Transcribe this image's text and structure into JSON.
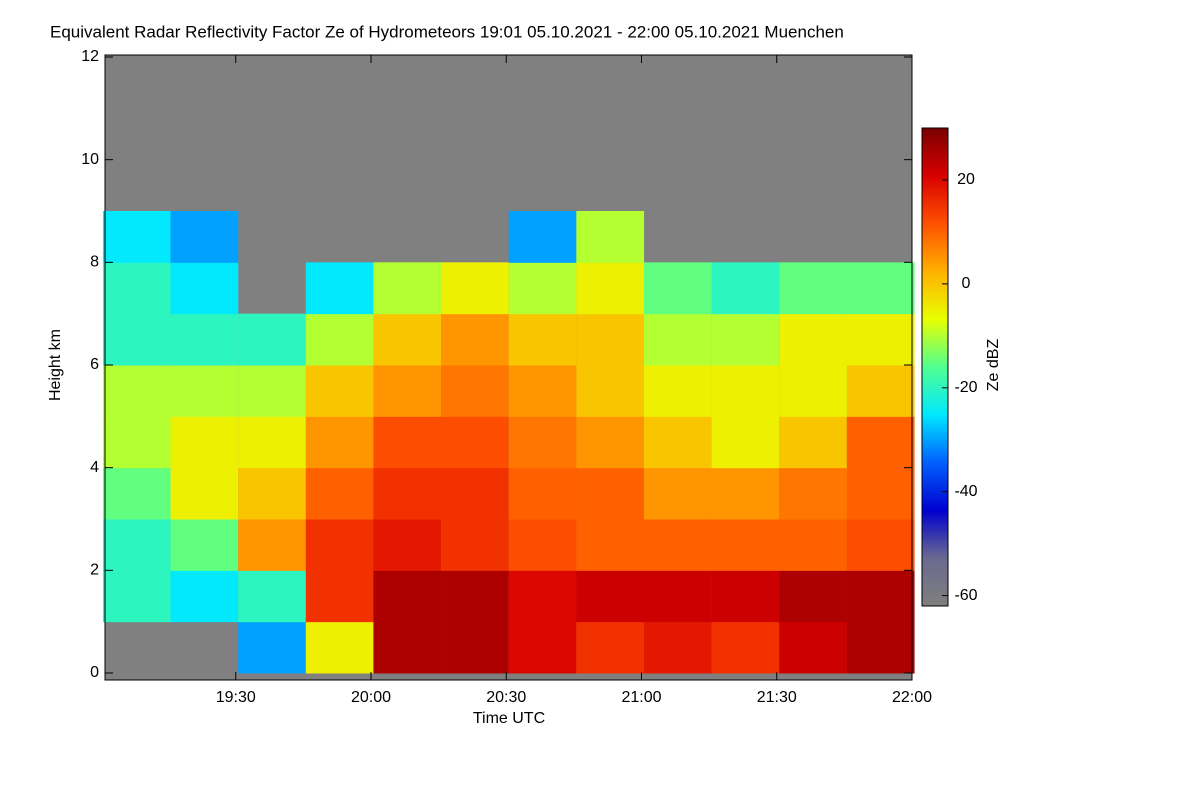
{
  "chart_data": {
    "type": "heatmap",
    "title": "Equivalent Radar Reflectivity Factor Ze of Hydrometeors   19:01 05.10.2021 - 22:00 05.10.2021 Muenchen",
    "xlabel": "Time UTC",
    "ylabel": "Height km",
    "colorbar_label": "Ze dBZ",
    "x": [
      1148,
      1163,
      1178,
      1193,
      1208,
      1223,
      1238,
      1253,
      1268,
      1283,
      1298,
      1313
    ],
    "y": [
      0.5,
      1.5,
      2.5,
      3.5,
      4.5,
      5.5,
      6.5,
      7.5,
      8.5,
      9.5,
      10.5,
      11.5
    ],
    "z": [
      [
        null,
        null,
        -30,
        -5,
        25,
        25,
        20,
        15,
        18,
        15,
        22,
        25
      ],
      [
        -20,
        -25,
        -20,
        15,
        25,
        25,
        20,
        22,
        22,
        22,
        25,
        25
      ],
      [
        -20,
        -15,
        5,
        15,
        18,
        15,
        12,
        10,
        10,
        10,
        10,
        12
      ],
      [
        -15,
        -5,
        0,
        10,
        15,
        15,
        10,
        10,
        5,
        5,
        8,
        10
      ],
      [
        -10,
        -5,
        -5,
        5,
        12,
        12,
        8,
        5,
        0,
        -5,
        0,
        10
      ],
      [
        -10,
        -10,
        -10,
        0,
        5,
        8,
        5,
        0,
        -5,
        -5,
        -5,
        0
      ],
      [
        -20,
        -20,
        -20,
        -10,
        0,
        5,
        0,
        0,
        -10,
        -10,
        -5,
        -5
      ],
      [
        -20,
        -25,
        null,
        -25,
        -10,
        -5,
        -10,
        -5,
        -15,
        -20,
        -15,
        -15
      ],
      [
        -25,
        -30,
        null,
        null,
        null,
        null,
        -30,
        -10,
        null,
        null,
        null,
        null
      ],
      [
        null,
        null,
        null,
        null,
        null,
        null,
        null,
        null,
        null,
        null,
        null,
        null
      ],
      [
        null,
        null,
        null,
        null,
        null,
        null,
        null,
        null,
        null,
        null,
        null,
        null
      ],
      [
        null,
        null,
        null,
        null,
        null,
        null,
        null,
        null,
        null,
        null,
        null,
        null
      ]
    ],
    "xlim": [
      1141,
      1320
    ],
    "xticks": [
      {
        "value": 1170,
        "label": "19:30"
      },
      {
        "value": 1200,
        "label": "20:00"
      },
      {
        "value": 1230,
        "label": "20:30"
      },
      {
        "value": 1260,
        "label": "21:00"
      },
      {
        "value": 1290,
        "label": "21:30"
      },
      {
        "value": 1320,
        "label": "22:00"
      }
    ],
    "ylim": [
      0,
      12
    ],
    "yticks": [
      0,
      2,
      4,
      6,
      8,
      10,
      12
    ],
    "zlim": [
      -62,
      30
    ],
    "zticks": [
      -60,
      -40,
      -20,
      0,
      20
    ],
    "colormap": [
      "#7f7f7f",
      "#6a6a90",
      "#0000d0",
      "#0060ff",
      "#00e8ff",
      "#50ff90",
      "#e8ff00",
      "#ffb000",
      "#ff5000",
      "#d80000",
      "#7a0000"
    ],
    "nodata_color": "#808080"
  }
}
